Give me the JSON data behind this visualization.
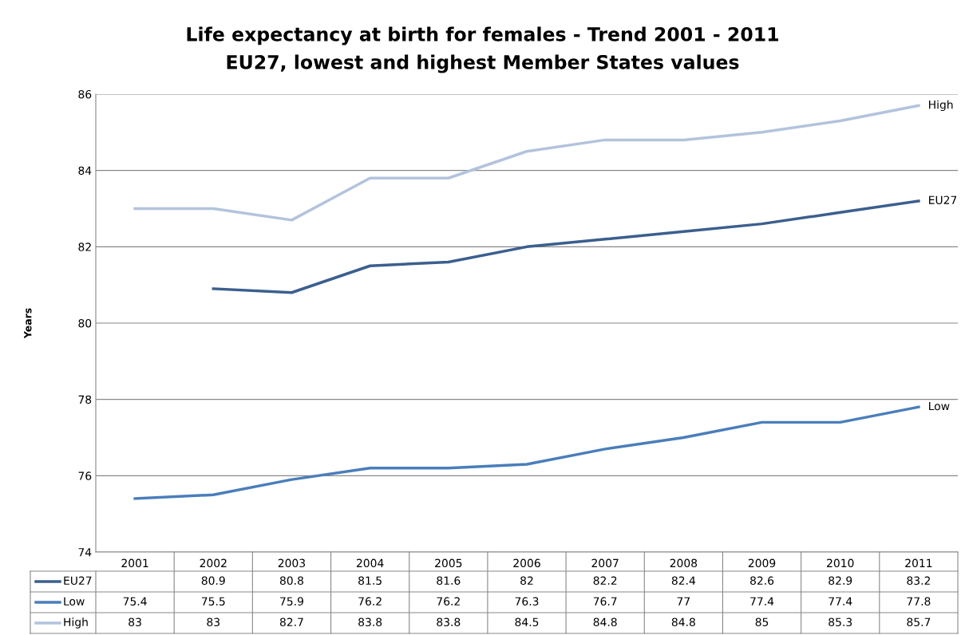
{
  "chart_data": {
    "type": "line",
    "title": "Life expectancy at birth for females - Trend 2001 - 2011",
    "subtitle": "EU27, lowest and highest Member States values",
    "ylabel": "Years",
    "categories": [
      "2001",
      "2002",
      "2003",
      "2004",
      "2005",
      "2006",
      "2007",
      "2008",
      "2009",
      "2010",
      "2011"
    ],
    "series": [
      {
        "name": "EU27",
        "color": "#3b5f8e",
        "values": [
          null,
          80.9,
          80.8,
          81.5,
          81.6,
          82,
          82.2,
          82.4,
          82.6,
          82.9,
          83.2
        ]
      },
      {
        "name": "Low",
        "color": "#4a7ebb",
        "values": [
          75.4,
          75.5,
          75.9,
          76.2,
          76.2,
          76.3,
          76.7,
          77,
          77.4,
          77.4,
          77.8
        ]
      },
      {
        "name": "High",
        "color": "#b3c3dd",
        "values": [
          83,
          83,
          82.7,
          83.8,
          83.8,
          84.5,
          84.8,
          84.8,
          85,
          85.3,
          85.7
        ]
      }
    ],
    "ylim": [
      74,
      86
    ],
    "yticks": [
      74,
      76,
      78,
      80,
      82,
      84,
      86
    ],
    "grid": "y",
    "legend": "bottom left",
    "data_labels": true,
    "marker": "none",
    "line_style": "solid"
  }
}
